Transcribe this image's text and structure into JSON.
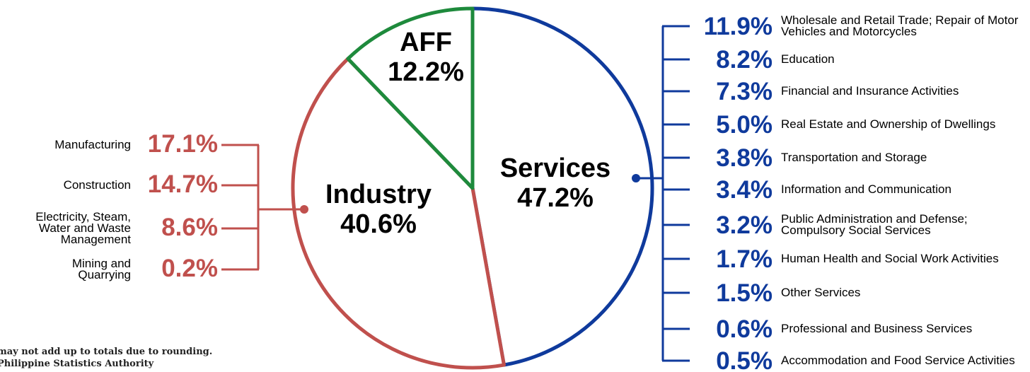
{
  "chart_data": {
    "type": "pie",
    "categories": [
      "Services",
      "Industry",
      "AFF"
    ],
    "values": [
      47.2,
      40.6,
      12.2
    ],
    "value_labels": [
      "47.2%",
      "40.6%",
      "12.2%"
    ],
    "colors": [
      "#0f3a9c",
      "#c0504d",
      "#1e8a3c"
    ],
    "industry_breakdown": {
      "categories": [
        "Manufacturing",
        "Construction",
        "Electricity, Steam, Water and Waste Management",
        "Mining and Quarrying"
      ],
      "values": [
        17.1,
        14.7,
        8.6,
        0.2
      ],
      "value_labels": [
        "17.1%",
        "14.7%",
        "8.6%",
        "0.2%"
      ]
    },
    "services_breakdown": {
      "categories": [
        "Wholesale and Retail Trade; Repair of Motor Vehicles and Motorcycles",
        "Education",
        "Financial and Insurance Activities",
        "Real Estate and Ownership of Dwellings",
        "Transportation and Storage",
        "Information and Communication",
        "Public Administration and Defense; Compulsory Social Services",
        "Human Health and Social Work Activities",
        "Other Services",
        "Professional and Business Services",
        "Accommodation and Food Service Activities"
      ],
      "values": [
        11.9,
        8.2,
        7.3,
        5.0,
        3.8,
        3.4,
        3.2,
        1.7,
        1.5,
        0.6,
        0.5
      ],
      "value_labels": [
        "11.9%",
        "8.2%",
        "7.3%",
        "5.0%",
        "3.8%",
        "3.4%",
        "3.2%",
        "1.7%",
        "1.5%",
        "0.6%",
        "0.5%"
      ]
    }
  },
  "footnote": [
    "may not add up to totals due to rounding.",
    "Philippine Statistics Authority"
  ]
}
